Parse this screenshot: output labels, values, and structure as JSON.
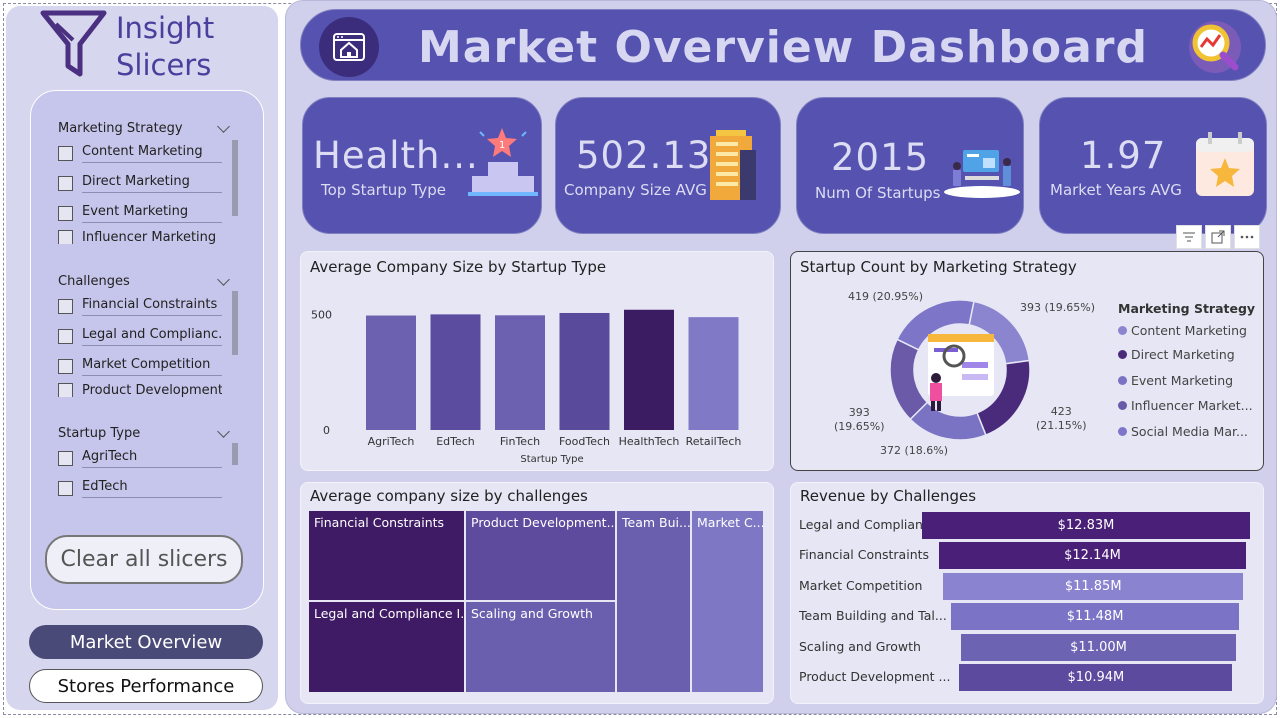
{
  "sidebar": {
    "brand_line1": "Insight",
    "brand_line2": "Slicers",
    "groups": [
      {
        "title": "Marketing Strategy",
        "items": [
          "Content Marketing",
          "Direct Marketing",
          "Event Marketing",
          "Influencer Marketing"
        ]
      },
      {
        "title": "Challenges",
        "items": [
          "Financial Constraints",
          "Legal and Complianc...",
          "Market Competition",
          "Product Development..."
        ]
      },
      {
        "title": "Startup Type",
        "items": [
          "AgriTech",
          "EdTech"
        ]
      }
    ],
    "clear_label": "Clear all slicers",
    "nav": [
      {
        "label": "Market Overview",
        "active": true
      },
      {
        "label": "Stores Performance",
        "active": false
      }
    ]
  },
  "header": {
    "title": "Market Overview Dashboard"
  },
  "kpis": [
    {
      "value": "Health...",
      "label": "Top Startup Type",
      "icon": "podium-icon"
    },
    {
      "value": "502.13",
      "label": "Company Size AVG",
      "icon": "building-icon"
    },
    {
      "value": "2015",
      "label": "Num Of Startups",
      "icon": "team-icon"
    },
    {
      "value": "1.97",
      "label": "Market Years AVG",
      "icon": "calendar-star-icon"
    }
  ],
  "visual_toolbar": [
    "filter-icon",
    "focus-icon",
    "more-icon"
  ],
  "chart_data": [
    {
      "type": "bar",
      "title": "Average Company Size by Startup Type",
      "xlabel": "Startup Type",
      "ylabel": "",
      "categories": [
        "AgriTech",
        "EdTech",
        "FinTech",
        "FoodTech",
        "HealthTech",
        "RetailTech"
      ],
      "values": [
        495,
        500,
        496,
        506,
        520,
        488
      ],
      "ylim": [
        0,
        640
      ],
      "yticks": [
        "500",
        "0"
      ],
      "colors": [
        "#6c61b0",
        "#5b4c9f",
        "#6c61b0",
        "#5a4a9c",
        "#3b1c63",
        "#7f79c6"
      ]
    },
    {
      "type": "pie",
      "title": "Startup Count by Marketing Strategy",
      "legend_title": "Marketing Strategy",
      "labels": [
        "Content Marketing",
        "Direct Marketing",
        "Event Marketing",
        "Influencer Market...",
        "Social Media Mar..."
      ],
      "values": [
        393,
        423,
        372,
        393,
        419
      ],
      "data_labels": [
        "393 (19.65%)",
        "423 (21.15%)",
        "372 (18.6%)",
        "393 (19.65%)",
        "419 (20.95%)"
      ],
      "colors": [
        "#8b84cf",
        "#4a2a7a",
        "#7a73c4",
        "#6b5aa8",
        "#7c75c8"
      ]
    },
    {
      "type": "treemap",
      "title": "Average company size by challenges",
      "labels": [
        "Financial Constraints",
        "Product Development...",
        "Team Bui...",
        "Market C...",
        "Legal and Compliance I...",
        "Scaling and Growth"
      ],
      "colors": [
        "#3f1b66",
        "#5e4b9d",
        "#6a5fae",
        "#7e78c4",
        "#3f1b66",
        "#6a5fae"
      ]
    },
    {
      "type": "bar",
      "orientation": "horizontal",
      "title": "Revenue by Challenges",
      "categories": [
        "Legal and Compliance ...",
        "Financial Constraints",
        "Market Competition",
        "Team Building and Tal...",
        "Scaling and Growth",
        "Product Development ..."
      ],
      "values": [
        12.83,
        12.14,
        11.85,
        11.48,
        11.0,
        10.94
      ],
      "data_labels": [
        "$12.83M",
        "$12.14M",
        "$11.85M",
        "$11.48M",
        "$11.00M",
        "$10.94M"
      ],
      "colors": [
        "#4a1f78",
        "#4a1f78",
        "#8a84d0",
        "#7b74c6",
        "#6d63b3",
        "#5b4a9e"
      ]
    }
  ]
}
